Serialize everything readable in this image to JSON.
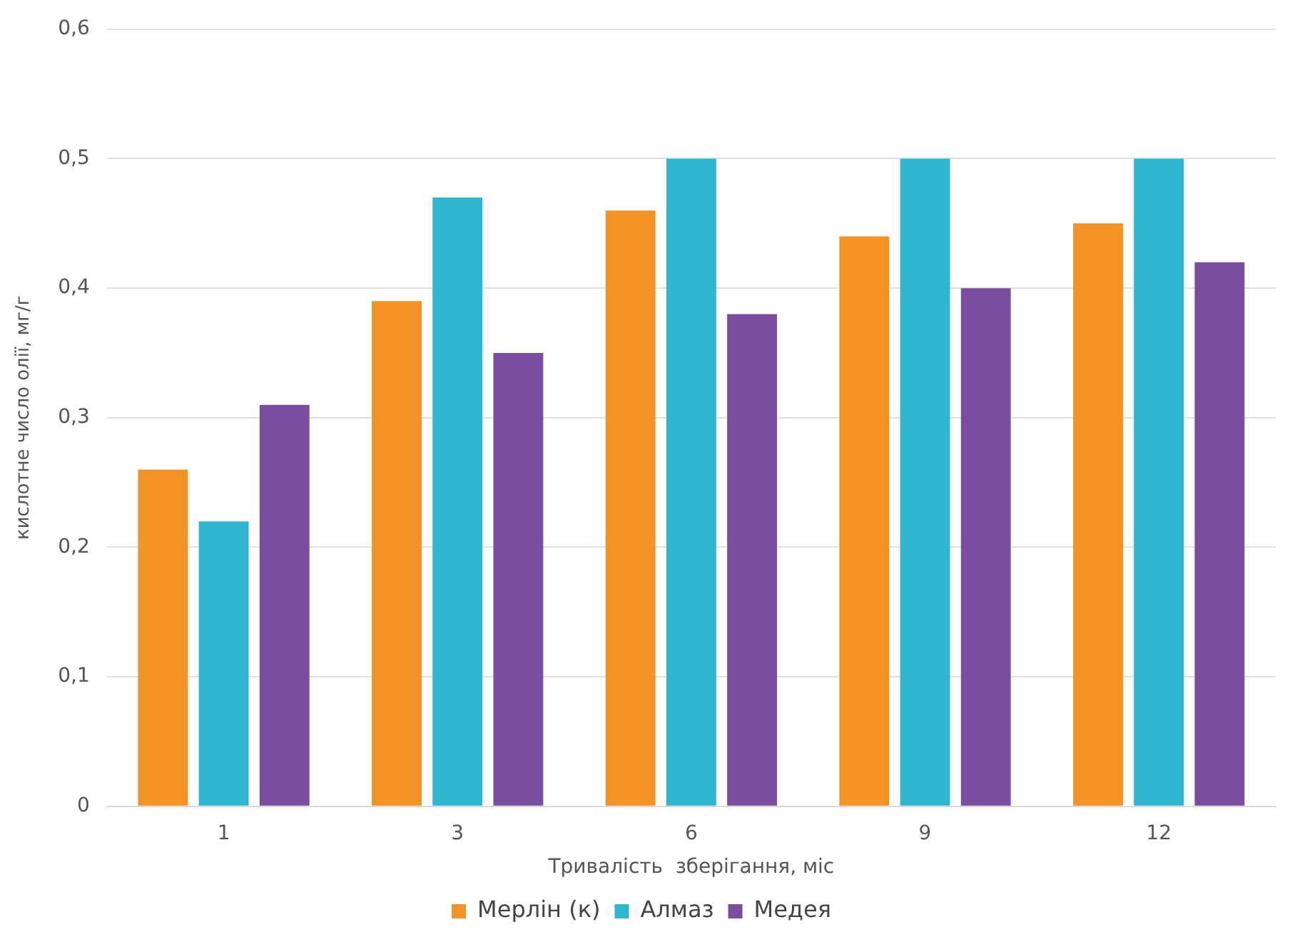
{
  "chart_data": {
    "type": "bar",
    "xlabel": "Тривалість  зберігання, міс",
    "ylabel": "кислотне число олії, мг/г",
    "categories": [
      "1",
      "3",
      "6",
      "9",
      "12"
    ],
    "series": [
      {
        "name": "Мерлін (к)",
        "color": "#f39325",
        "values": [
          0.26,
          0.39,
          0.46,
          0.44,
          0.45
        ]
      },
      {
        "name": "Алмаз",
        "color": "#2fb5cf",
        "values": [
          0.22,
          0.47,
          0.5,
          0.5,
          0.5
        ]
      },
      {
        "name": "Медея",
        "color": "#7a4d9e",
        "values": [
          0.31,
          0.35,
          0.38,
          0.4,
          0.42
        ]
      }
    ],
    "ylim": [
      0,
      0.6
    ],
    "yticks": [
      0,
      {
        "value": 0.1,
        "label": "0,1"
      },
      {
        "value": 0.2,
        "label": "0,2"
      },
      {
        "value": 0.3,
        "label": "0,3"
      },
      {
        "value": 0.4,
        "label": "0,4"
      },
      {
        "value": 0.5,
        "label": "0,5"
      },
      {
        "value": 0.6,
        "label": "0,6"
      }
    ],
    "grid": "y",
    "legend": "bottom"
  }
}
